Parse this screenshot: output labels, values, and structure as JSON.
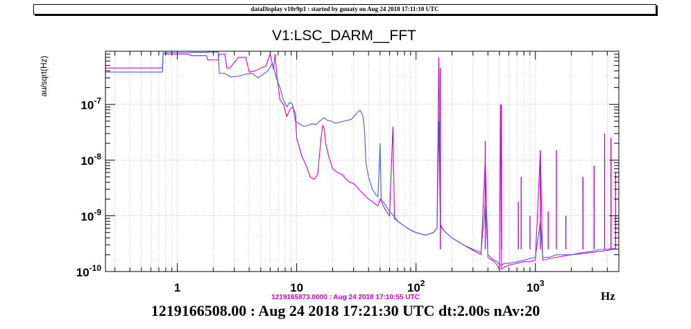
{
  "banner": "dataDisplay v10r9p1 : started by gouaty on Aug 24 2018 17:11:10 UTC",
  "reference_stamp": "1219165873.0000 : Aug 24 2018 17:10:55 UTC",
  "footer": "1219166508.00 : Aug 24 2018 17:21:30 UTC dt:2.00s nAv:20",
  "colors": {
    "current": "#4455ee",
    "reference": "#cc00cc",
    "grid": "#999999",
    "axis": "#000000"
  },
  "chart_data": {
    "type": "line",
    "title": "V1:LSC_DARM__FFT",
    "xlabel": "Hz",
    "ylabel": "au/sqrt(Hz)",
    "xscale": "log",
    "yscale": "log",
    "xlim": [
      0.25,
      5000
    ],
    "ylim": [
      1e-10,
      9e-07
    ],
    "grid": true,
    "x_ticks": [
      {
        "value": 1,
        "label": "1"
      },
      {
        "value": 10,
        "label": "10"
      },
      {
        "value": 100,
        "label": "10",
        "sup": "2"
      },
      {
        "value": 1000,
        "label": "10",
        "sup": "3"
      }
    ],
    "y_ticks": [
      {
        "value": 1e-10,
        "label": "10",
        "sup": "-10"
      },
      {
        "value": 1e-09,
        "label": "10",
        "sup": "-9"
      },
      {
        "value": 1e-08,
        "label": "10",
        "sup": "-8"
      },
      {
        "value": 1e-07,
        "label": "10",
        "sup": "-7"
      }
    ],
    "series": [
      {
        "name": "current",
        "color": "#4455ee",
        "points": [
          [
            0.25,
            3.8e-07
          ],
          [
            0.5,
            3.8e-07
          ],
          [
            0.75,
            3.8e-07
          ],
          [
            0.76,
            8.5e-07
          ],
          [
            1.25,
            8.5e-07
          ],
          [
            1.3,
            8.6e-07
          ],
          [
            1.75,
            8.6e-07
          ],
          [
            1.8,
            8.7e-07
          ],
          [
            2.2,
            8.7e-07
          ],
          [
            2.25,
            3.6e-07
          ],
          [
            2.5,
            3.6e-07
          ],
          [
            2.8,
            3.1e-07
          ],
          [
            3.25,
            3.2e-07
          ],
          [
            3.75,
            3.5e-07
          ],
          [
            4.25,
            3.6e-07
          ],
          [
            4.75,
            3e-07
          ],
          [
            5.25,
            3.5e-07
          ],
          [
            5.75,
            4e-07
          ],
          [
            6.25,
            5.5e-07
          ],
          [
            6.75,
            3e-07
          ],
          [
            7.25,
            2e-07
          ],
          [
            7.75,
            1.2e-07
          ],
          [
            8.25,
            9e-08
          ],
          [
            8.75,
            1.1e-07
          ],
          [
            9.25,
            1e-07
          ],
          [
            9.75,
            5e-08
          ],
          [
            10.5,
            4.5e-08
          ],
          [
            11.5,
            4e-08
          ],
          [
            12.5,
            4.2e-08
          ],
          [
            13.5,
            4.5e-08
          ],
          [
            14.5,
            4.3e-08
          ],
          [
            15.5,
            5e-08
          ],
          [
            16.5,
            5.5e-08
          ],
          [
            17.0,
            5.8e-08
          ],
          [
            18.0,
            5.2e-08
          ],
          [
            19.5,
            5e-08
          ],
          [
            21.0,
            4.6e-08
          ],
          [
            23.0,
            4.8e-08
          ],
          [
            25.0,
            5e-08
          ],
          [
            27.0,
            5.2e-08
          ],
          [
            29.0,
            5.5e-08
          ],
          [
            31.0,
            6.5e-08
          ],
          [
            33.0,
            7.5e-08
          ],
          [
            34.0,
            7.8e-08
          ],
          [
            35.0,
            7e-08
          ],
          [
            36.0,
            6e-08
          ],
          [
            37.0,
            3.5e-08
          ],
          [
            38.0,
            9e-09
          ],
          [
            40.0,
            5e-09
          ],
          [
            43.0,
            3e-09
          ],
          [
            46.0,
            2.4e-09
          ],
          [
            48.0,
            2.2e-09
          ],
          [
            50.0,
            2e-08
          ],
          [
            51.0,
            2e-09
          ],
          [
            55.0,
            1.6e-09
          ],
          [
            60.0,
            1.2e-09
          ],
          [
            65.0,
            1e-09
          ],
          [
            70.0,
            8e-10
          ],
          [
            80.0,
            6.5e-10
          ],
          [
            90.0,
            5.5e-10
          ],
          [
            100.0,
            5e-10
          ],
          [
            120.0,
            4.5e-10
          ],
          [
            140.0,
            5e-10
          ],
          [
            150.0,
            6e-10
          ],
          [
            155.0,
            5e-08
          ],
          [
            160.0,
            6.5e-10
          ],
          [
            170.0,
            5.5e-10
          ],
          [
            200.0,
            4e-10
          ],
          [
            250.0,
            3e-10
          ],
          [
            300.0,
            2.5e-10
          ],
          [
            350.0,
            2.2e-10
          ],
          [
            380.0,
            1.6e-09
          ],
          [
            400.0,
            2e-10
          ],
          [
            450.0,
            1.6e-10
          ],
          [
            480.0,
            1.5e-10
          ],
          [
            500.0,
            1.3e-10
          ],
          [
            520.0,
            1.3e-10
          ],
          [
            550.0,
            1.4e-10
          ],
          [
            600.0,
            1.4e-10
          ],
          [
            700.0,
            1.5e-10
          ],
          [
            800.0,
            1.6e-10
          ],
          [
            900.0,
            1.7e-10
          ],
          [
            1000.0,
            1.8e-10
          ],
          [
            1100.0,
            8e-10
          ],
          [
            1150.0,
            1.8e-10
          ],
          [
            1300.0,
            1.8e-10
          ],
          [
            1500.0,
            2e-10
          ],
          [
            2000.0,
            2e-10
          ],
          [
            2500.0,
            2.2e-10
          ],
          [
            3000.0,
            2.3e-10
          ],
          [
            3500.0,
            2.5e-10
          ],
          [
            4000.0,
            2.5e-10
          ],
          [
            4500.0,
            2.6e-10
          ],
          [
            5000.0,
            2.5e-10
          ]
        ]
      },
      {
        "name": "reference",
        "color": "#cc00cc",
        "points": [
          [
            0.25,
            4.5e-07
          ],
          [
            0.5,
            4.5e-07
          ],
          [
            0.75,
            4.5e-07
          ],
          [
            0.76,
            8e-07
          ],
          [
            1.25,
            8e-07
          ],
          [
            1.3,
            7.5e-07
          ],
          [
            1.75,
            7.5e-07
          ],
          [
            1.8,
            6.3e-07
          ],
          [
            2.2,
            6.3e-07
          ],
          [
            2.25,
            8e-07
          ],
          [
            2.5,
            8e-07
          ],
          [
            2.6,
            4.5e-07
          ],
          [
            2.75,
            4.5e-07
          ],
          [
            3.25,
            7e-07
          ],
          [
            3.75,
            7e-07
          ],
          [
            4.0,
            3.8e-07
          ],
          [
            4.5,
            4e-07
          ],
          [
            5.0,
            4.5e-07
          ],
          [
            5.5,
            4.8e-07
          ],
          [
            6.0,
            8e-07
          ],
          [
            6.4,
            4.2e-07
          ],
          [
            6.6,
            8e-07
          ],
          [
            6.8,
            3.5e-07
          ],
          [
            7.25,
            1.2e-07
          ],
          [
            7.75,
            1e-07
          ],
          [
            8.25,
            6e-08
          ],
          [
            8.75,
            8e-08
          ],
          [
            9.25,
            9e-08
          ],
          [
            9.75,
            7e-08
          ],
          [
            10.0,
            2.5e-08
          ],
          [
            11.0,
            1.2e-08
          ],
          [
            12.0,
            8e-09
          ],
          [
            13.0,
            5e-09
          ],
          [
            14.0,
            4.5e-09
          ],
          [
            15.0,
            5.5e-09
          ],
          [
            16.0,
            2.5e-08
          ],
          [
            16.5,
            4.2e-08
          ],
          [
            17.0,
            3.8e-08
          ],
          [
            17.5,
            2e-08
          ],
          [
            18.5,
            1.2e-08
          ],
          [
            20.0,
            7e-09
          ],
          [
            22.0,
            6e-09
          ],
          [
            24.0,
            5.5e-09
          ],
          [
            26.0,
            4.5e-09
          ],
          [
            28.0,
            4e-09
          ],
          [
            30.0,
            3.8e-09
          ],
          [
            32.0,
            3.3e-09
          ],
          [
            34.0,
            2.8e-09
          ],
          [
            36.0,
            2.5e-09
          ],
          [
            38.0,
            2.2e-09
          ],
          [
            40.0,
            2e-09
          ],
          [
            43.0,
            1.8e-09
          ],
          [
            46.0,
            1.6e-09
          ],
          [
            48.0,
            1.5e-09
          ],
          [
            50.0,
            2e-09
          ],
          [
            55.0,
            1.3e-09
          ],
          [
            60.0,
            1e-09
          ],
          [
            64.0,
            4e-08
          ],
          [
            66.0,
            9e-10
          ],
          [
            70.0,
            8e-10
          ],
          [
            80.0,
            6.5e-10
          ],
          [
            90.0,
            5.5e-10
          ],
          [
            100.0,
            5e-10
          ],
          [
            120.0,
            4.5e-10
          ],
          [
            140.0,
            5e-10
          ],
          [
            150.0,
            6e-10
          ],
          [
            155.0,
            7e-07
          ],
          [
            160.0,
            7e-10
          ],
          [
            170.0,
            5.5e-10
          ],
          [
            200.0,
            4e-10
          ],
          [
            250.0,
            3e-10
          ],
          [
            300.0,
            2.4e-10
          ],
          [
            350.0,
            2e-10
          ],
          [
            380.0,
            1e-08
          ],
          [
            400.0,
            1.8e-10
          ],
          [
            450.0,
            1.5e-10
          ],
          [
            480.0,
            1.3e-10
          ],
          [
            500.0,
            1.1e-10
          ],
          [
            510.0,
            1e-07
          ],
          [
            520.0,
            1.1e-10
          ],
          [
            550.0,
            1.2e-10
          ],
          [
            600.0,
            1.3e-10
          ],
          [
            700.0,
            1.4e-10
          ],
          [
            800.0,
            1.5e-10
          ],
          [
            900.0,
            1.5e-10
          ],
          [
            1000.0,
            1.6e-10
          ],
          [
            1100.0,
            1.5e-08
          ],
          [
            1150.0,
            1.6e-10
          ],
          [
            1300.0,
            1.7e-10
          ],
          [
            1500.0,
            1.8e-10
          ],
          [
            2000.0,
            2e-10
          ],
          [
            2500.0,
            2.1e-10
          ],
          [
            3000.0,
            2.2e-10
          ],
          [
            3500.0,
            2.3e-10
          ],
          [
            4000.0,
            2.4e-10
          ],
          [
            4500.0,
            2.5e-10
          ],
          [
            5000.0,
            2.5e-10
          ]
        ]
      }
    ],
    "spikes": [
      {
        "x": 160,
        "y": 4.5e-07,
        "series": "reference"
      },
      {
        "x": 380,
        "y": 2.2e-08,
        "series": "reference"
      },
      {
        "x": 520,
        "y": 1e-07,
        "series": "reference"
      },
      {
        "x": 720,
        "y": 1.8e-09,
        "series": "reference"
      },
      {
        "x": 760,
        "y": 5e-09,
        "series": "reference"
      },
      {
        "x": 900,
        "y": 1e-09,
        "series": "reference"
      },
      {
        "x": 1100,
        "y": 1.5e-08,
        "series": "reference"
      },
      {
        "x": 1280,
        "y": 1.2e-09,
        "series": "reference"
      },
      {
        "x": 1500,
        "y": 1.5e-08,
        "series": "reference"
      },
      {
        "x": 1800,
        "y": 1e-09,
        "series": "reference"
      },
      {
        "x": 2500,
        "y": 5e-09,
        "series": "reference"
      },
      {
        "x": 3100,
        "y": 8e-09,
        "series": "reference"
      },
      {
        "x": 3800,
        "y": 3e-08,
        "series": "reference"
      },
      {
        "x": 4300,
        "y": 2.5e-08,
        "series": "reference"
      },
      {
        "x": 4700,
        "y": 6e-09,
        "series": "reference"
      }
    ]
  }
}
